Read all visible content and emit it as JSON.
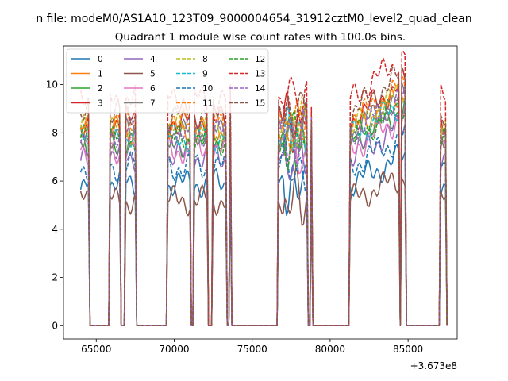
{
  "chart_data": {
    "type": "line",
    "suptitle": "n file: modeM0/AS1A10_123T09_9000004654_31912cztM0_level2_quad_clean",
    "title": "Quadrant 1 module wise count rates with 100.0s bins.",
    "xlabel": "",
    "ylabel": "",
    "x_offset_label": "+3.673e8",
    "xlim": [
      62900,
      88150
    ],
    "ylim": [
      -0.55,
      11.6
    ],
    "x_ticks": [
      65000,
      70000,
      75000,
      80000,
      85000
    ],
    "x_tick_labels": [
      "65000",
      "70000",
      "75000",
      "80000",
      "85000"
    ],
    "y_ticks": [
      0,
      2,
      4,
      6,
      8,
      10
    ],
    "y_tick_labels": [
      "0",
      "2",
      "4",
      "6",
      "8",
      "10"
    ],
    "legend_position": "upper-left",
    "on_intervals": [
      [
        64000,
        64500
      ],
      [
        65900,
        66550
      ],
      [
        66850,
        67500
      ],
      [
        69600,
        71000
      ],
      [
        71300,
        72100
      ],
      [
        72500,
        73300
      ],
      [
        73550,
        73650
      ],
      [
        76700,
        78550
      ],
      [
        78750,
        78850
      ],
      [
        81300,
        84450
      ],
      [
        84550,
        84850
      ],
      [
        87100,
        87400
      ]
    ],
    "series": [
      {
        "name": "0",
        "color": "#1f77b4",
        "dash": "solid",
        "level": 5.9
      },
      {
        "name": "1",
        "color": "#ff7f0e",
        "dash": "solid",
        "level": 8.1
      },
      {
        "name": "2",
        "color": "#2ca02c",
        "dash": "solid",
        "level": 7.6
      },
      {
        "name": "3",
        "color": "#d62728",
        "dash": "solid",
        "level": 8.5
      },
      {
        "name": "4",
        "color": "#9467bd",
        "dash": "solid",
        "level": 7.0
      },
      {
        "name": "5",
        "color": "#8c564b",
        "dash": "solid",
        "level": 5.2
      },
      {
        "name": "6",
        "color": "#e377c2",
        "dash": "solid",
        "level": 7.3
      },
      {
        "name": "7",
        "color": "#7f7f7f",
        "dash": "solid",
        "level": 8.0
      },
      {
        "name": "8",
        "color": "#bcbd22",
        "dash": "dashed",
        "level": 8.2
      },
      {
        "name": "9",
        "color": "#17becf",
        "dash": "dashed",
        "level": 7.8
      },
      {
        "name": "10",
        "color": "#1f77b4",
        "dash": "dashed",
        "level": 6.6
      },
      {
        "name": "11",
        "color": "#ff7f0e",
        "dash": "dashed",
        "level": 8.4
      },
      {
        "name": "12",
        "color": "#2ca02c",
        "dash": "dashed",
        "level": 7.7
      },
      {
        "name": "13",
        "color": "#d62728",
        "dash": "dashed",
        "level": 9.4
      },
      {
        "name": "14",
        "color": "#9467bd",
        "dash": "dashed",
        "level": 8.0
      },
      {
        "name": "15",
        "color": "#8c564b",
        "dash": "dashed",
        "level": 8.8
      }
    ]
  }
}
